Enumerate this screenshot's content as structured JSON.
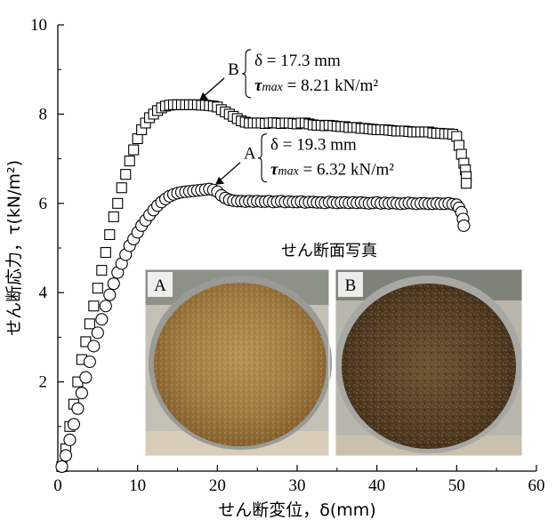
{
  "chart_data": {
    "type": "scatter",
    "title": "",
    "xlabel": "せん断変位，δ(mm)",
    "ylabel": "せん断応力，τ(kN/m²)",
    "xlim": [
      0,
      60
    ],
    "ylim": [
      0,
      10
    ],
    "x_ticks": [
      "0",
      "10",
      "20",
      "30",
      "40",
      "50",
      "60"
    ],
    "y_ticks": [
      "2",
      "4",
      "6",
      "8",
      "10"
    ],
    "grid": false,
    "legend": "none",
    "series": [
      {
        "name": "B",
        "marker": "square",
        "x": [
          0.5,
          1,
          1.5,
          2,
          2.5,
          3,
          3.5,
          4,
          4.5,
          5,
          5.5,
          6,
          6.5,
          7,
          7.5,
          8,
          8.5,
          9,
          9.5,
          10,
          10.5,
          11,
          11.5,
          12,
          12.5,
          13,
          13.5,
          14,
          14.5,
          15,
          15.5,
          16,
          16.5,
          17,
          17.5,
          18,
          18.5,
          19,
          19.5,
          20,
          20.5,
          21,
          21.5,
          22,
          22.5,
          23,
          23.5,
          24,
          24.5,
          25,
          25.5,
          26,
          26.5,
          27,
          27.5,
          28,
          28.5,
          29,
          29.5,
          30,
          30.5,
          31,
          31.5,
          32,
          32.5,
          33,
          33.5,
          34,
          34.5,
          35,
          35.5,
          36,
          36.5,
          37,
          37.5,
          38,
          38.5,
          39,
          39.5,
          40,
          40.5,
          41,
          41.5,
          42,
          42.5,
          43,
          43.5,
          44,
          44.5,
          45,
          45.5,
          46,
          46.5,
          47,
          47.5,
          48,
          48.5,
          49,
          49.5,
          50,
          50.3,
          50.6,
          50.9,
          51.1,
          51.2,
          51.2
        ],
        "y": [
          0.1,
          0.5,
          1.0,
          1.5,
          2.0,
          2.5,
          2.9,
          3.3,
          3.7,
          4.1,
          4.5,
          4.9,
          5.3,
          5.7,
          6.0,
          6.35,
          6.65,
          6.95,
          7.2,
          7.45,
          7.65,
          7.8,
          7.92,
          8.0,
          8.08,
          8.14,
          8.18,
          8.2,
          8.21,
          8.21,
          8.21,
          8.21,
          8.21,
          8.21,
          8.21,
          8.2,
          8.2,
          8.19,
          8.18,
          8.16,
          8.1,
          8.05,
          8.0,
          7.95,
          7.9,
          7.85,
          7.82,
          7.8,
          7.8,
          7.8,
          7.8,
          7.79,
          7.8,
          7.81,
          7.8,
          7.79,
          7.8,
          7.8,
          7.79,
          7.78,
          7.8,
          7.8,
          7.78,
          7.76,
          7.75,
          7.75,
          7.74,
          7.75,
          7.74,
          7.73,
          7.72,
          7.72,
          7.7,
          7.7,
          7.7,
          7.68,
          7.68,
          7.67,
          7.66,
          7.65,
          7.65,
          7.65,
          7.64,
          7.63,
          7.62,
          7.62,
          7.62,
          7.61,
          7.6,
          7.6,
          7.6,
          7.6,
          7.6,
          7.58,
          7.57,
          7.57,
          7.56,
          7.56,
          7.55,
          7.5,
          7.3,
          7.1,
          6.9,
          6.75,
          6.6,
          6.45
        ]
      },
      {
        "name": "A",
        "marker": "circle",
        "x": [
          0.5,
          1,
          1.5,
          2,
          2.5,
          3,
          3.5,
          4,
          4.5,
          5,
          5.5,
          6,
          6.5,
          7,
          7.5,
          8,
          8.5,
          9,
          9.5,
          10,
          10.5,
          11,
          11.5,
          12,
          12.5,
          13,
          13.5,
          14,
          14.5,
          15,
          15.5,
          16,
          16.5,
          17,
          17.5,
          18,
          18.5,
          19,
          19.5,
          20,
          20.5,
          21,
          21.5,
          22,
          22.5,
          23,
          23.5,
          24,
          24.5,
          25,
          25.5,
          26,
          26.5,
          27,
          27.5,
          28,
          28.5,
          29,
          29.5,
          30,
          30.5,
          31,
          31.5,
          32,
          32.5,
          33,
          33.5,
          34,
          34.5,
          35,
          35.5,
          36,
          36.5,
          37,
          37.5,
          38,
          38.5,
          39,
          39.5,
          40,
          40.5,
          41,
          41.5,
          42,
          42.5,
          43,
          43.5,
          44,
          44.5,
          45,
          45.5,
          46,
          46.5,
          47,
          47.5,
          48,
          48.5,
          49,
          49.5,
          50,
          50.3,
          50.6,
          50.8,
          50.9
        ],
        "y": [
          0.1,
          0.35,
          0.7,
          1.05,
          1.4,
          1.75,
          2.1,
          2.45,
          2.8,
          3.1,
          3.4,
          3.7,
          3.95,
          4.2,
          4.45,
          4.65,
          4.85,
          5.05,
          5.2,
          5.35,
          5.5,
          5.62,
          5.74,
          5.85,
          5.95,
          6.03,
          6.1,
          6.16,
          6.2,
          6.23,
          6.25,
          6.26,
          6.27,
          6.28,
          6.29,
          6.3,
          6.31,
          6.32,
          6.3,
          6.26,
          6.18,
          6.12,
          6.08,
          6.06,
          6.05,
          6.05,
          6.04,
          6.05,
          6.04,
          6.05,
          6.04,
          6.04,
          6.05,
          6.03,
          6.04,
          6.05,
          6.03,
          6.04,
          6.03,
          6.03,
          6.04,
          6.02,
          6.03,
          6.03,
          6.02,
          6.02,
          6.01,
          6.03,
          6.02,
          6.01,
          6.02,
          6.02,
          6.01,
          6.02,
          6.01,
          6.02,
          6.01,
          6.0,
          6.01,
          6.02,
          6.0,
          6.01,
          6.0,
          6.01,
          6.0,
          5.99,
          6.0,
          6.01,
          6.0,
          5.99,
          6.0,
          6.0,
          5.99,
          5.99,
          6.0,
          5.99,
          5.99,
          6.0,
          5.98,
          5.97,
          5.9,
          5.8,
          5.65,
          5.5
        ]
      }
    ],
    "annotations": [
      {
        "label": "B",
        "delta": "δ = 17.3 mm",
        "tau_sym": "τ",
        "tau_sub": "max",
        "tau_val": " = 8.21 kN/m²",
        "point_x": 17.3,
        "point_y": 8.21
      },
      {
        "label": "A",
        "delta": "δ = 19.3 mm",
        "tau_sym": "τ",
        "tau_sub": "max",
        "tau_val": " = 6.32 kN/m²",
        "point_x": 19.3,
        "point_y": 6.32
      }
    ]
  },
  "photos": {
    "title": "せん断面写真",
    "items": [
      {
        "label": "A",
        "description": "fine uniform shear surface"
      },
      {
        "label": "B",
        "description": "coarse fibrous shear surface"
      }
    ]
  }
}
